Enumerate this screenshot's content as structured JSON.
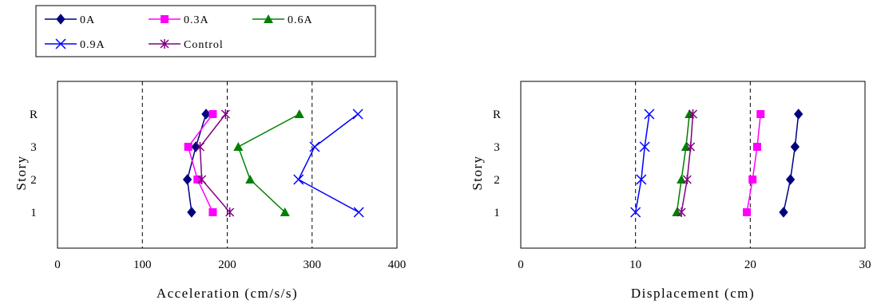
{
  "legend": {
    "entries": [
      {
        "name": "0A",
        "color": "#000080",
        "marker": "diamond"
      },
      {
        "name": "0.3A",
        "color": "#FF00FF",
        "marker": "square"
      },
      {
        "name": "0.6A",
        "color": "#008000",
        "marker": "triangle"
      },
      {
        "name": "0.9A",
        "color": "#0000FF",
        "marker": "x"
      },
      {
        "name": "Control",
        "color": "#800080",
        "marker": "star"
      }
    ]
  },
  "chart_data": [
    {
      "type": "line",
      "orientation": "horizontal",
      "xlabel": "Acceleration (cm/s/s)",
      "ylabel": "Story",
      "xlim": [
        0,
        400
      ],
      "xticks": [
        0,
        100,
        200,
        300,
        400
      ],
      "gridlines_x": [
        100,
        200,
        300
      ],
      "categories": [
        "1",
        "2",
        "3",
        "R"
      ],
      "series": [
        {
          "name": "0A",
          "values": [
            158,
            153,
            163,
            175
          ]
        },
        {
          "name": "0.3A",
          "values": [
            183,
            165,
            154,
            183
          ]
        },
        {
          "name": "0.6A",
          "values": [
            268,
            227,
            213,
            285
          ]
        },
        {
          "name": "0.9A",
          "values": [
            355,
            284,
            303,
            354
          ]
        },
        {
          "name": "Control",
          "values": [
            203,
            170,
            168,
            198
          ]
        }
      ]
    },
    {
      "type": "line",
      "orientation": "horizontal",
      "xlabel": "Displacement (cm)",
      "ylabel": "Story",
      "xlim": [
        0,
        30
      ],
      "xticks": [
        0,
        10,
        20,
        30
      ],
      "gridlines_x": [
        10,
        20,
        30
      ],
      "categories": [
        "1",
        "2",
        "3",
        "R"
      ],
      "series": [
        {
          "name": "0A",
          "values": [
            22.9,
            23.5,
            23.9,
            24.2
          ]
        },
        {
          "name": "0.3A",
          "values": [
            19.7,
            20.2,
            20.6,
            20.9
          ]
        },
        {
          "name": "0.6A",
          "values": [
            13.6,
            14.0,
            14.4,
            14.7
          ]
        },
        {
          "name": "0.9A",
          "values": [
            10.0,
            10.5,
            10.8,
            11.2
          ]
        },
        {
          "name": "Control",
          "values": [
            14.0,
            14.5,
            14.8,
            15.0
          ]
        }
      ]
    }
  ]
}
